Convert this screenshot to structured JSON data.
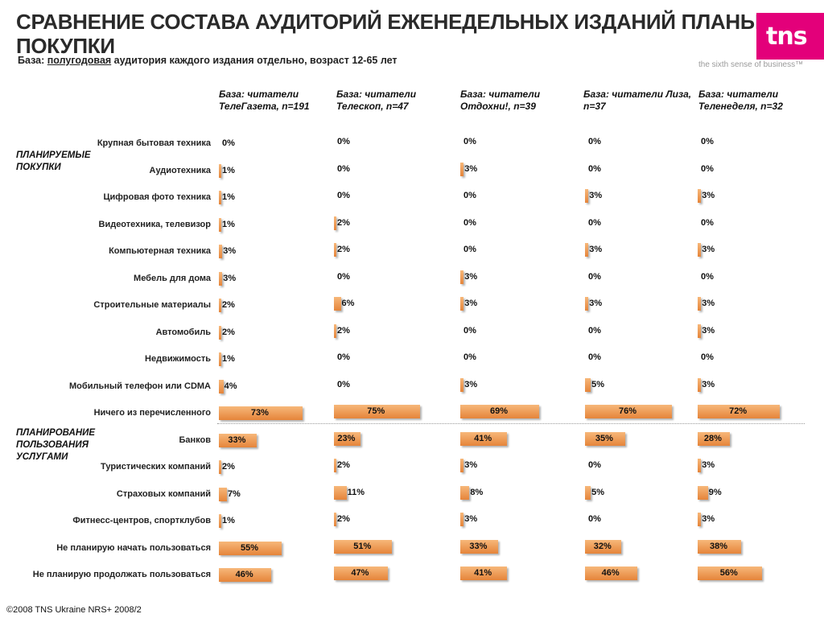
{
  "header": {
    "title_line1": "СРАВНЕНИЕ СОСТАВА АУДИТОРИЙ ЕЖЕНЕДЕЛЬНЫХ ИЗДАНИЙ ПЛАНЫ",
    "title_line2": "ПОКУПКИ",
    "subtitle_prefix": "База: ",
    "subtitle_underlined": "полугодовая",
    "subtitle_rest": " аудитория каждого издания отдельно, возраст 12-65 лет"
  },
  "logo": {
    "text": "tns",
    "tagline": "the sixth sense of business™",
    "color": "#e3007a"
  },
  "footer": "©2008 TNS Ukraine  NRS+ 2008/2",
  "chart_data": {
    "type": "bar",
    "orientation": "horizontal",
    "value_unit": "%",
    "sections": [
      {
        "label": "ПЛАНИРУЕМЫЕ ПОКУПКИ",
        "rows": [
          0,
          10
        ]
      },
      {
        "label": "ПЛАНИРОВАНИЕ ПОЛЬЗОВАНИЯ УСЛУГАМИ",
        "rows": [
          11,
          16
        ]
      }
    ],
    "categories": [
      "Крупная бытовая техника",
      "Аудиотехника",
      "Цифровая фото техника",
      "Видеотехника, телевизор",
      "Компьютерная техника",
      "Мебель для дома",
      "Строительные материалы",
      "Автомобиль",
      "Недвижимость",
      "Мобильный телефон или CDMA",
      "Ничего из перечисленного",
      "Банков",
      "Туристических компаний",
      "Страховых компаний",
      "Фитнесс-центров, спортклубов",
      "Не планирую начать пользоваться",
      "Не планирую продолжать пользоваться"
    ],
    "series": [
      {
        "name": "База: читатели ТелеГазета, n=191",
        "values": [
          0,
          1,
          1,
          1,
          3,
          3,
          2,
          2,
          1,
          4,
          73,
          33,
          2,
          7,
          1,
          55,
          46
        ]
      },
      {
        "name": "База: читатели Телескоп, n=47",
        "values": [
          0,
          0,
          0,
          2,
          2,
          0,
          6,
          2,
          0,
          0,
          75,
          23,
          2,
          11,
          2,
          51,
          47
        ]
      },
      {
        "name": "База: читатели Отдохни!, n=39",
        "values": [
          0,
          3,
          0,
          0,
          0,
          3,
          3,
          0,
          0,
          3,
          69,
          41,
          3,
          8,
          3,
          33,
          41
        ]
      },
      {
        "name": "База: читатели Лиза, n=37",
        "values": [
          0,
          0,
          3,
          0,
          3,
          0,
          3,
          0,
          0,
          5,
          76,
          35,
          0,
          5,
          0,
          32,
          46
        ]
      },
      {
        "name": "База: читатели Теленеделя, n=32",
        "values": [
          0,
          0,
          3,
          0,
          3,
          0,
          3,
          3,
          0,
          3,
          72,
          28,
          3,
          9,
          3,
          38,
          56
        ]
      }
    ],
    "colors": {
      "bar": "#e5843a",
      "bar_light": "#f7b77a"
    }
  }
}
